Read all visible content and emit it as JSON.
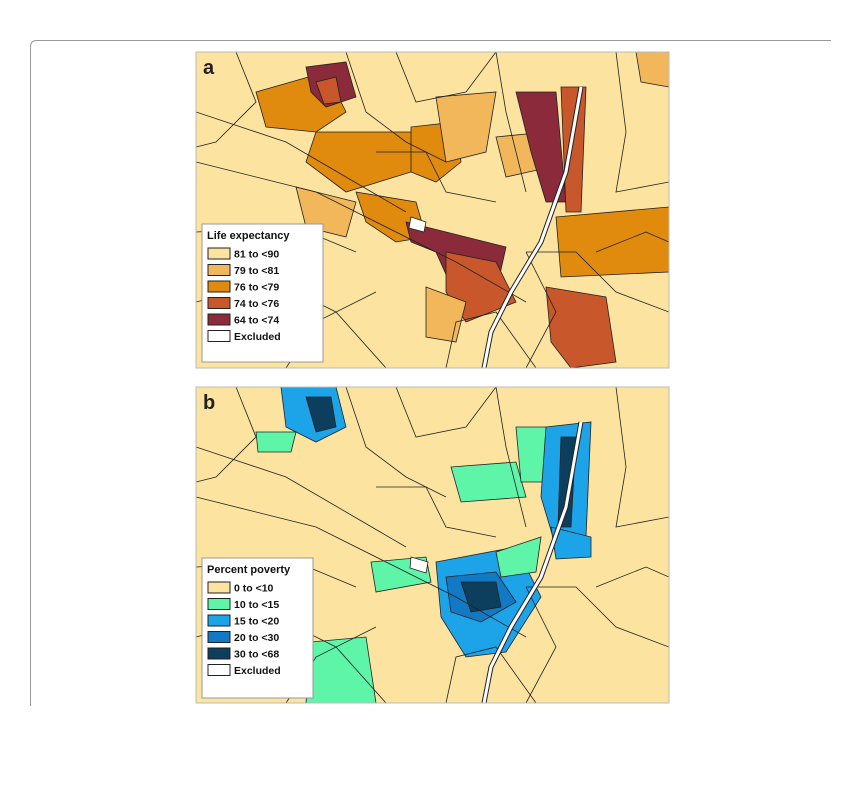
{
  "panels": [
    {
      "label": "a",
      "legend": {
        "title": "Life expectancy",
        "items": [
          {
            "label": "81 to <90",
            "color": "#fde3a0"
          },
          {
            "label": "79 to <81",
            "color": "#f2b75a"
          },
          {
            "label": "76 to <79",
            "color": "#e08a0e"
          },
          {
            "label": "74 to <76",
            "color": "#c8582b"
          },
          {
            "label": "64 to <74",
            "color": "#8b2a3a"
          },
          {
            "label": "Excluded",
            "color": "#ffffff"
          }
        ]
      }
    },
    {
      "label": "b",
      "legend": {
        "title": "Percent poverty",
        "items": [
          {
            "label": "0 to <10",
            "color": "#fde3a0"
          },
          {
            "label": "10 to <15",
            "color": "#5ef5a8"
          },
          {
            "label": "15 to <20",
            "color": "#1ca3e8"
          },
          {
            "label": "20 to <30",
            "color": "#1279c4"
          },
          {
            "label": "30 to <68",
            "color": "#0c3f5e"
          },
          {
            "label": "Excluded",
            "color": "#ffffff"
          }
        ]
      }
    }
  ]
}
